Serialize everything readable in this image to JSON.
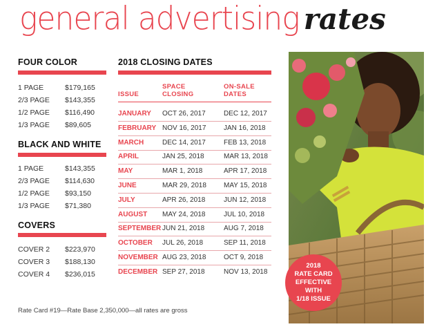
{
  "title": {
    "light": "general advertising",
    "bold": "rates"
  },
  "four_color": {
    "heading": "FOUR COLOR",
    "rows": [
      {
        "label": "1 PAGE",
        "price": "$179,165"
      },
      {
        "label": "2/3 PAGE",
        "price": "$143,355"
      },
      {
        "label": "1/2 PAGE",
        "price": "$116,490"
      },
      {
        "label": "1/3 PAGE",
        "price": "$89,605"
      }
    ]
  },
  "black_white": {
    "heading": "BLACK AND WHITE",
    "rows": [
      {
        "label": "1 PAGE",
        "price": "$143,355"
      },
      {
        "label": "2/3 PAGE",
        "price": "$114,630"
      },
      {
        "label": "1/2 PAGE",
        "price": "$93,150"
      },
      {
        "label": "1/3 PAGE",
        "price": "$71,380"
      }
    ]
  },
  "covers": {
    "heading": "COVERS",
    "rows": [
      {
        "label": "COVER 2",
        "price": "$223,970"
      },
      {
        "label": "COVER 3",
        "price": "$188,130"
      },
      {
        "label": "COVER 4",
        "price": "$236,015"
      }
    ]
  },
  "closing": {
    "heading": "2018 CLOSING DATES",
    "col_issue": "ISSUE",
    "col_space": "SPACE\nCLOSING",
    "col_onsale": "ON-SALE\nDATES",
    "rows": [
      {
        "issue": "JANUARY",
        "space": "OCT 26, 2017",
        "onsale": "DEC 12, 2017"
      },
      {
        "issue": "FEBRUARY",
        "space": "NOV 16, 2017",
        "onsale": "JAN 16, 2018"
      },
      {
        "issue": "MARCH",
        "space": "DEC 14, 2017",
        "onsale": "FEB 13, 2018"
      },
      {
        "issue": "APRIL",
        "space": "JAN 25, 2018",
        "onsale": "MAR 13, 2018"
      },
      {
        "issue": "MAY",
        "space": "MAR 1, 2018",
        "onsale": "APR 17, 2018"
      },
      {
        "issue": "JUNE",
        "space": "MAR 29, 2018",
        "onsale": "MAY 15, 2018"
      },
      {
        "issue": "JULY",
        "space": "APR 26, 2018",
        "onsale": "JUN 12, 2018"
      },
      {
        "issue": "AUGUST",
        "space": "MAY 24, 2018",
        "onsale": "JUL 10, 2018"
      },
      {
        "issue": "SEPTEMBER",
        "space": "JUN 21, 2018",
        "onsale": "AUG 7, 2018"
      },
      {
        "issue": "OCTOBER",
        "space": "JUL 26, 2018",
        "onsale": "SEP 11, 2018"
      },
      {
        "issue": "NOVEMBER",
        "space": "AUG 23, 2018",
        "onsale": "OCT 9, 2018"
      },
      {
        "issue": "DECEMBER",
        "space": "SEP 27, 2018",
        "onsale": "NOV 13, 2018"
      }
    ]
  },
  "badge": "2018\nRATE CARD\nEFFECTIVE WITH\n1/18 ISSUE",
  "footnote": "Rate Card #19—Rate Base 2,350,000—all rates are gross",
  "colors": {
    "accent": "#e8454f",
    "text": "#222222",
    "photo_yellow": "#d4e23a"
  }
}
